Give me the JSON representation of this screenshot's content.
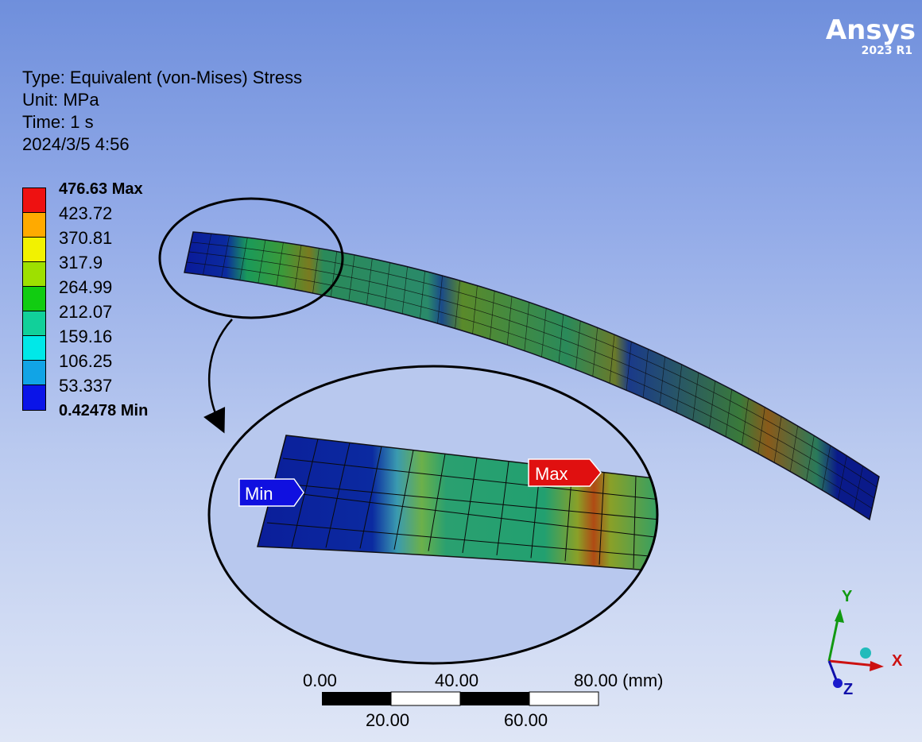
{
  "logo": {
    "brand": "Ansys",
    "version": "2023 R1"
  },
  "result_info": {
    "type": "Type: Equivalent (von-Mises) Stress",
    "unit": "Unit: MPa",
    "time": "Time: 1 s",
    "date": "2024/3/5 4:56"
  },
  "legend": {
    "colors": [
      "#ee1111",
      "#ffaa00",
      "#f2f200",
      "#9ee000",
      "#11cc11",
      "#11d09a",
      "#00e8e8",
      "#11a4e6",
      "#0a14e8"
    ],
    "labels": [
      {
        "text": "476.63 Max",
        "bold": true
      },
      {
        "text": "423.72",
        "bold": false
      },
      {
        "text": "370.81",
        "bold": false
      },
      {
        "text": "317.9",
        "bold": false
      },
      {
        "text": "264.99",
        "bold": false
      },
      {
        "text": "212.07",
        "bold": false
      },
      {
        "text": "159.16",
        "bold": false
      },
      {
        "text": "106.25",
        "bold": false
      },
      {
        "text": "53.337",
        "bold": false
      },
      {
        "text": "0.42478 Min",
        "bold": true
      }
    ]
  },
  "probes": {
    "min_label": "Min",
    "max_label": "Max"
  },
  "scale_bar": {
    "top_labels": [
      "0.00",
      "40.00",
      "80.00 (mm)"
    ],
    "bottom_labels": [
      "20.00",
      "60.00"
    ]
  },
  "triad": {
    "x": "X",
    "y": "Y",
    "z": "Z"
  }
}
